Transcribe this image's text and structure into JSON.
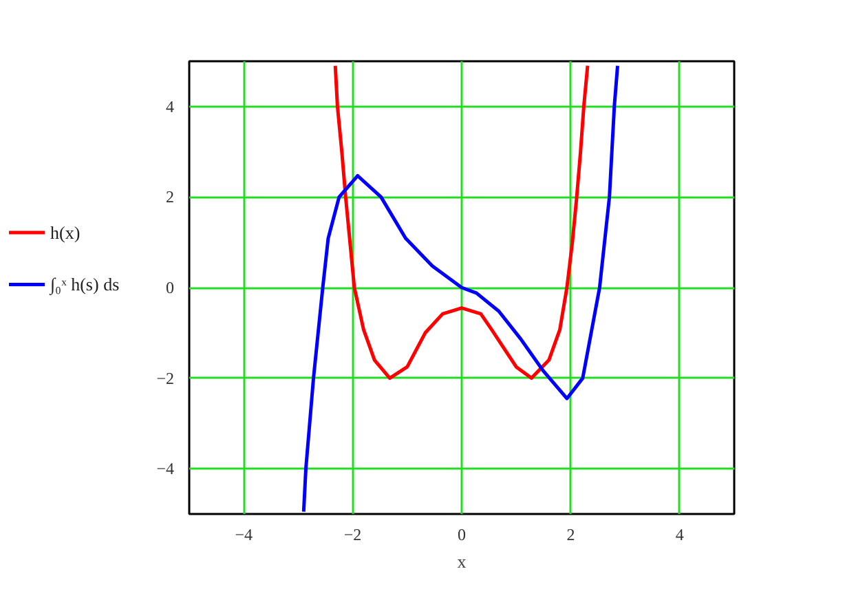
{
  "chart_data": {
    "type": "line",
    "xlabel": "x",
    "xlim": [
      -5,
      5
    ],
    "ylim": [
      -5,
      5
    ],
    "xticks": [
      -4,
      -2,
      0,
      2,
      4
    ],
    "yticks": [
      -4,
      -2,
      0,
      2,
      4
    ],
    "grid": true,
    "legend": "left",
    "line_style": "solid",
    "series": [
      {
        "name": "h(x)",
        "color": "#ff0000",
        "x": [
          -2.32,
          -2.28,
          -2.2,
          -2.13,
          -2.05,
          -1.97,
          -1.8,
          -1.6,
          -1.32,
          -1.0,
          -0.67,
          -0.35,
          0,
          0.35,
          0.55,
          1.0,
          1.28,
          1.6,
          1.8,
          1.93,
          2.03,
          2.11,
          2.18,
          2.24,
          2.31
        ],
        "values": [
          4.9,
          4,
          3,
          2,
          1,
          0,
          -0.93,
          -1.6,
          -2,
          -1.75,
          -1.0,
          -0.58,
          -0.45,
          -0.58,
          -0.93,
          -1.75,
          -2,
          -1.6,
          -0.93,
          0,
          1,
          2,
          3,
          4,
          4.9
        ]
      },
      {
        "name": "∫₀ˣ h(s) ds",
        "color": "#0000ff",
        "x": [
          -2.9,
          -2.86,
          -2.72,
          -2.55,
          -2.45,
          -2.25,
          -1.91,
          -1.48,
          -1.03,
          -0.54,
          0,
          0.27,
          0.68,
          1.08,
          1.49,
          1.93,
          2.22,
          2.53,
          2.71,
          2.8,
          2.86
        ],
        "values": [
          -4.95,
          -4,
          -2,
          0,
          1.09,
          2,
          2.47,
          2,
          1.09,
          0.48,
          0,
          -0.12,
          -0.52,
          -1.13,
          -1.83,
          -2.45,
          -2,
          0,
          2,
          4,
          4.9
        ]
      }
    ]
  }
}
